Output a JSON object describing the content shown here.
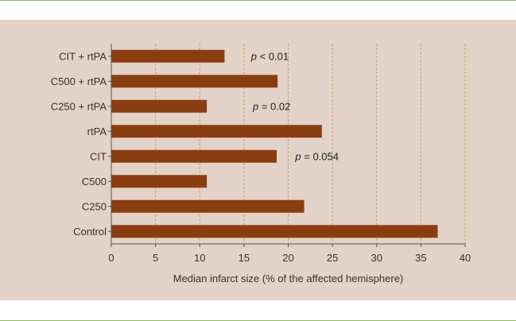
{
  "chart_data": {
    "type": "bar",
    "orientation": "horizontal",
    "categories": [
      "CIT + rtPA",
      "C500 + rtPA",
      "C250 + rtPA",
      "rtPA",
      "CIT",
      "C500",
      "C250",
      "Control"
    ],
    "values": [
      12.8,
      18.8,
      10.8,
      23.8,
      18.7,
      10.8,
      21.8,
      36.9
    ],
    "xlabel": "Median infarct size (% of the affected hemisphere)",
    "ylabel": "",
    "xlim": [
      0,
      40
    ],
    "xticks": [
      0,
      5,
      10,
      15,
      20,
      25,
      30,
      35,
      40
    ],
    "grid": "vertical dashed",
    "annotations": [
      {
        "prefix": "p",
        "text": " < 0.01",
        "category": "CIT + rtPA",
        "x": 15.8
      },
      {
        "prefix": "p",
        "text": " = 0.02",
        "category": "C250 + rtPA",
        "x": 16.0
      },
      {
        "prefix": "p",
        "text": " = 0.054",
        "category": "CIT",
        "x": 20.8
      }
    ],
    "colors": {
      "bar": "#8b3d12",
      "background": "#e3d2c7",
      "grid": "#c9a06a",
      "axis": "#555555"
    }
  }
}
